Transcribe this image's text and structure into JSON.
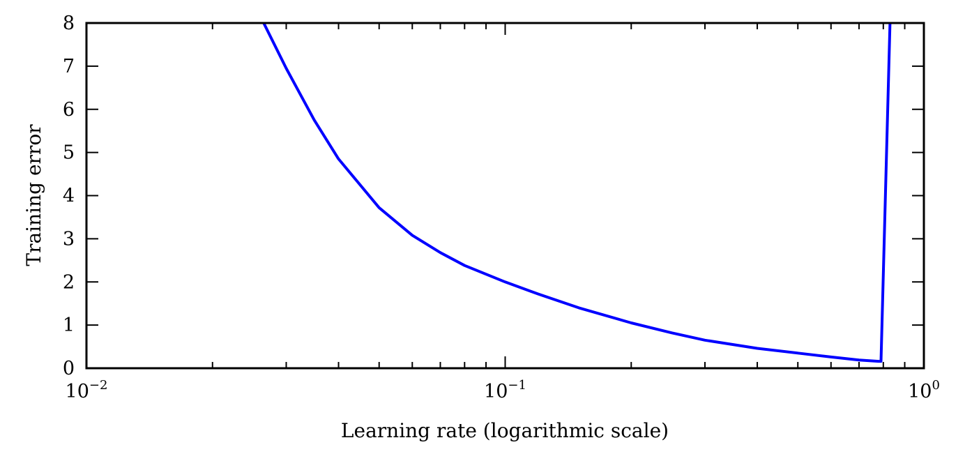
{
  "chart_data": {
    "type": "line",
    "title": "",
    "xlabel": "Learning rate (logarithmic scale)",
    "ylabel": "Training error",
    "xscale": "log",
    "xlim": [
      0.01,
      1
    ],
    "ylim": [
      0,
      8
    ],
    "grid": false,
    "legend": "none",
    "x_ticks": [
      {
        "base": "10",
        "exp": "−2",
        "value": 0.01
      },
      {
        "base": "10",
        "exp": "−1",
        "value": 0.1
      },
      {
        "base": "10",
        "exp": "0",
        "value": 1
      }
    ],
    "y_ticks": [
      "0",
      "1",
      "2",
      "3",
      "4",
      "5",
      "6",
      "7",
      "8"
    ],
    "series": [
      {
        "color": "#0000ff",
        "x": [
          0.0265,
          0.03,
          0.035,
          0.04,
          0.05,
          0.06,
          0.07,
          0.08,
          0.1,
          0.12,
          0.15,
          0.2,
          0.25,
          0.3,
          0.4,
          0.5,
          0.6,
          0.7,
          0.78,
          0.79,
          0.83
        ],
        "y": [
          8.0,
          6.95,
          5.75,
          4.85,
          3.72,
          3.08,
          2.68,
          2.38,
          2.0,
          1.72,
          1.4,
          1.05,
          0.82,
          0.65,
          0.46,
          0.35,
          0.26,
          0.19,
          0.16,
          0.16,
          8.0
        ]
      }
    ]
  }
}
